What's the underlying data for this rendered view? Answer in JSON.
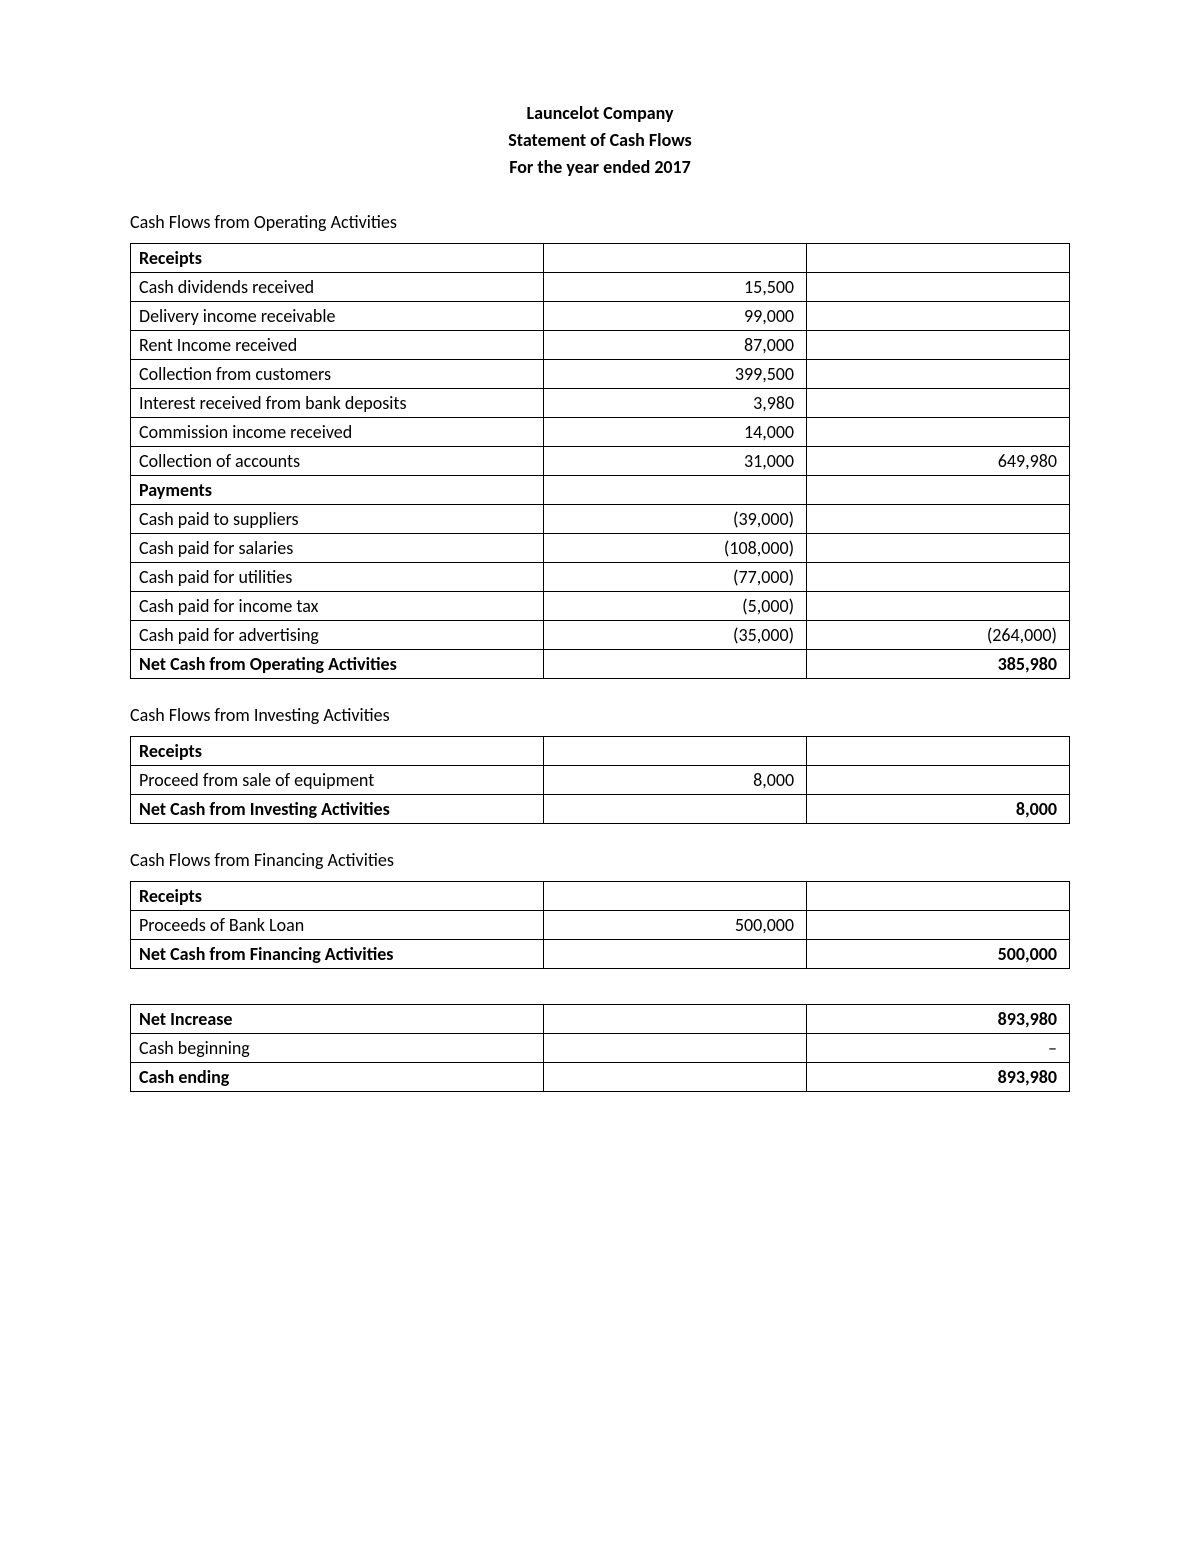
{
  "header": {
    "company": "Launcelot Company",
    "title": "Statement of Cash Flows",
    "period": "For the year ended 2017"
  },
  "operating": {
    "section_title": "Cash Flows from Operating Activities",
    "receipts_header": "Receipts",
    "receipts": [
      {
        "label": "Cash dividends received",
        "amount1": "15,500",
        "amount2": ""
      },
      {
        "label": "Delivery income receivable",
        "amount1": "99,000",
        "amount2": ""
      },
      {
        "label": "Rent Income received",
        "amount1": "87,000",
        "amount2": ""
      },
      {
        "label": "Collection from customers",
        "amount1": "399,500",
        "amount2": ""
      },
      {
        "label": "Interest received from bank deposits",
        "amount1": "3,980",
        "amount2": ""
      },
      {
        "label": "Commission income received",
        "amount1": "14,000",
        "amount2": ""
      },
      {
        "label": "Collection of accounts",
        "amount1": "31,000",
        "amount2": "649,980"
      }
    ],
    "payments_header": "Payments",
    "payments": [
      {
        "label": "Cash paid to suppliers",
        "amount1": "(39,000)",
        "amount2": ""
      },
      {
        "label": "Cash paid for salaries",
        "amount1": "(108,000)",
        "amount2": ""
      },
      {
        "label": "Cash paid for utilities",
        "amount1": "(77,000)",
        "amount2": ""
      },
      {
        "label": "Cash paid for income tax",
        "amount1": "(5,000)",
        "amount2": ""
      },
      {
        "label": "Cash paid for advertising",
        "amount1": "(35,000)",
        "amount2": "(264,000)"
      }
    ],
    "net_label": "Net Cash from Operating Activities",
    "net_value": "385,980"
  },
  "investing": {
    "section_title": "Cash Flows from Investing Activities",
    "receipts_header": "Receipts",
    "rows": [
      {
        "label": "Proceed from sale of equipment",
        "amount1": "8,000",
        "amount2": ""
      }
    ],
    "net_label": "Net Cash from Investing Activities",
    "net_value": "8,000"
  },
  "financing": {
    "section_title": "Cash Flows from Financing Activities",
    "receipts_header": "Receipts",
    "rows": [
      {
        "label": "Proceeds of Bank Loan",
        "amount1": "500,000",
        "amount2": ""
      }
    ],
    "net_label": "Net Cash from Financing Activities",
    "net_value": "500,000"
  },
  "summary": {
    "rows": [
      {
        "label": "Net Increase",
        "amount1": "",
        "amount2": "893,980",
        "bold": true
      },
      {
        "label": "Cash beginning",
        "amount1": "",
        "amount2": "–",
        "bold": false
      },
      {
        "label": "Cash ending",
        "amount1": "",
        "amount2": "893,980",
        "bold": true
      }
    ]
  }
}
